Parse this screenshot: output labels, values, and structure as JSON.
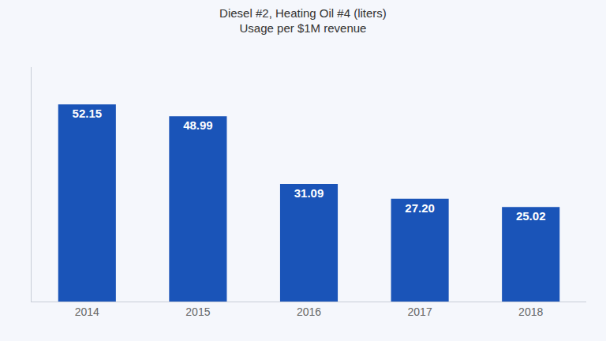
{
  "chart_data": {
    "type": "bar",
    "title": "Diesel #2, Heating Oil #4 (liters)",
    "subtitle": "Usage per $1M revenue",
    "categories": [
      "2014",
      "2015",
      "2016",
      "2017",
      "2018"
    ],
    "values": [
      52.15,
      48.99,
      31.09,
      27.2,
      25.02
    ],
    "value_labels": [
      "52.15",
      "48.99",
      "31.09",
      "27.20",
      "25.02"
    ],
    "data_labels": true,
    "color": "#1a54b8",
    "ylim": [
      0,
      62
    ],
    "tick_labels": "x",
    "grid": false
  }
}
